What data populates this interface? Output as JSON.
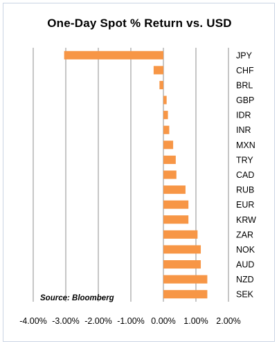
{
  "chart_data": {
    "type": "bar",
    "orientation": "horizontal",
    "title": "One-Day Spot % Return vs. USD",
    "source": "Source: Bloomberg",
    "categories": [
      "JPY",
      "CHF",
      "BRL",
      "GBP",
      "IDR",
      "INR",
      "MXN",
      "TRY",
      "CAD",
      "RUB",
      "EUR",
      "KRW",
      "ZAR",
      "NOK",
      "AUD",
      "NZD",
      "SEK"
    ],
    "values": [
      -3.05,
      -0.3,
      -0.12,
      0.1,
      0.14,
      0.18,
      0.3,
      0.38,
      0.4,
      0.68,
      0.77,
      0.77,
      1.05,
      1.15,
      1.15,
      1.35,
      1.35
    ],
    "xlim": [
      -4,
      2
    ],
    "xticks": [
      -4,
      -3,
      -2,
      -1,
      0,
      1,
      2
    ],
    "xtick_labels": [
      "-4.00%",
      "-3.00%",
      "-2.00%",
      "-1.00%",
      "0.00%",
      "1.00%",
      "2.00%"
    ],
    "grid": "vertical",
    "bar_color": "#f79646",
    "category_label_position": "right"
  }
}
